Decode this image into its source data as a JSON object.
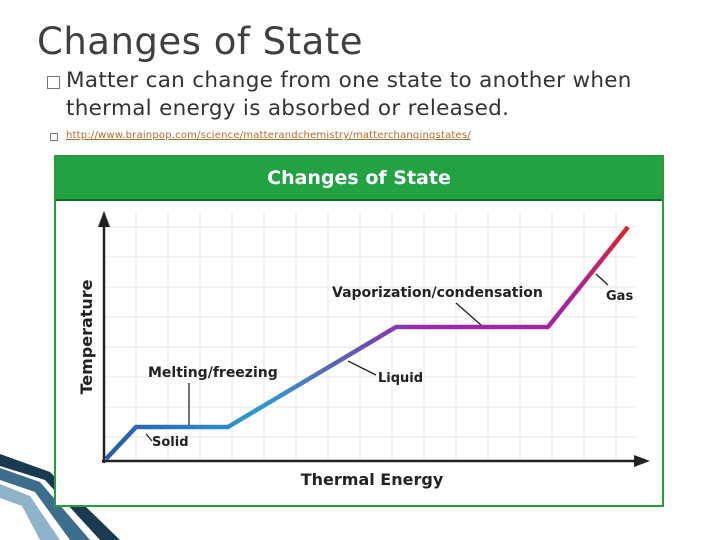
{
  "slide": {
    "title": "Changes of State",
    "bullets": [
      "Matter can change from one state to another when thermal energy is absorbed or released.",
      "http://www.brainpop.com/science/matterandchemistry/matterchangingstates/"
    ]
  },
  "figure": {
    "header": "Changes of State",
    "y_axis_label": "Temperature",
    "x_axis_label": "Thermal Energy",
    "labels": {
      "solid": "Solid",
      "liquid": "Liquid",
      "gas": "Gas",
      "melting": "Melting/freezing",
      "vaporization": "Vaporization/condensation"
    },
    "colors": {
      "header_green": "#23a244",
      "solid_blue": "#2f9bd0",
      "liquid_purple": "#9a2aa8",
      "gas_red": "#e0222e"
    }
  }
}
